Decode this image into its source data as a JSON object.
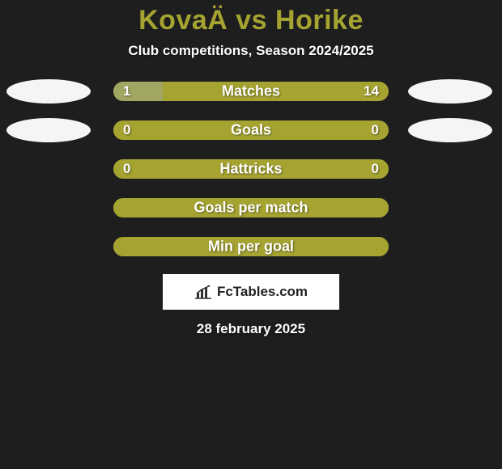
{
  "background_color": "#1e1e1e",
  "title": {
    "text": "KovaÄ vs Horike",
    "color": "#a6a431",
    "fontsize": 34
  },
  "subtitle": {
    "text": "Club competitions, Season 2024/2025",
    "color": "#ffffff",
    "fontsize": 17
  },
  "ellipse_color": "#f5f5f5",
  "bar_base_color": "#a6a431",
  "bar_alt_color": "#a1a763",
  "label_color": "#ffffff",
  "value_color": "#ffffff",
  "rows": [
    {
      "label": "Matches",
      "left_val": "1",
      "right_val": "14",
      "left_pct": 18,
      "right_pct": 82,
      "show_ellipses": true,
      "show_values": true,
      "left_fill": "#a1a763",
      "right_fill": "#a6a431"
    },
    {
      "label": "Goals",
      "left_val": "0",
      "right_val": "0",
      "left_pct": 50,
      "right_pct": 50,
      "show_ellipses": true,
      "show_values": true,
      "left_fill": "#a6a431",
      "right_fill": "#a6a431"
    },
    {
      "label": "Hattricks",
      "left_val": "0",
      "right_val": "0",
      "left_pct": 50,
      "right_pct": 50,
      "show_ellipses": false,
      "show_values": true,
      "left_fill": "#a6a431",
      "right_fill": "#a6a431"
    },
    {
      "label": "Goals per match",
      "left_val": "",
      "right_val": "",
      "left_pct": 100,
      "right_pct": 0,
      "show_ellipses": false,
      "show_values": false,
      "left_fill": "#a6a431",
      "right_fill": "#a6a431"
    },
    {
      "label": "Min per goal",
      "left_val": "",
      "right_val": "",
      "left_pct": 100,
      "right_pct": 0,
      "show_ellipses": false,
      "show_values": false,
      "left_fill": "#a6a431",
      "right_fill": "#a6a431"
    }
  ],
  "logo": {
    "text": "FcTables.com",
    "bg": "#ffffff",
    "color": "#222222",
    "chart_color": "#333333"
  },
  "footer_date": {
    "text": "28 february 2025",
    "color": "#ffffff"
  }
}
